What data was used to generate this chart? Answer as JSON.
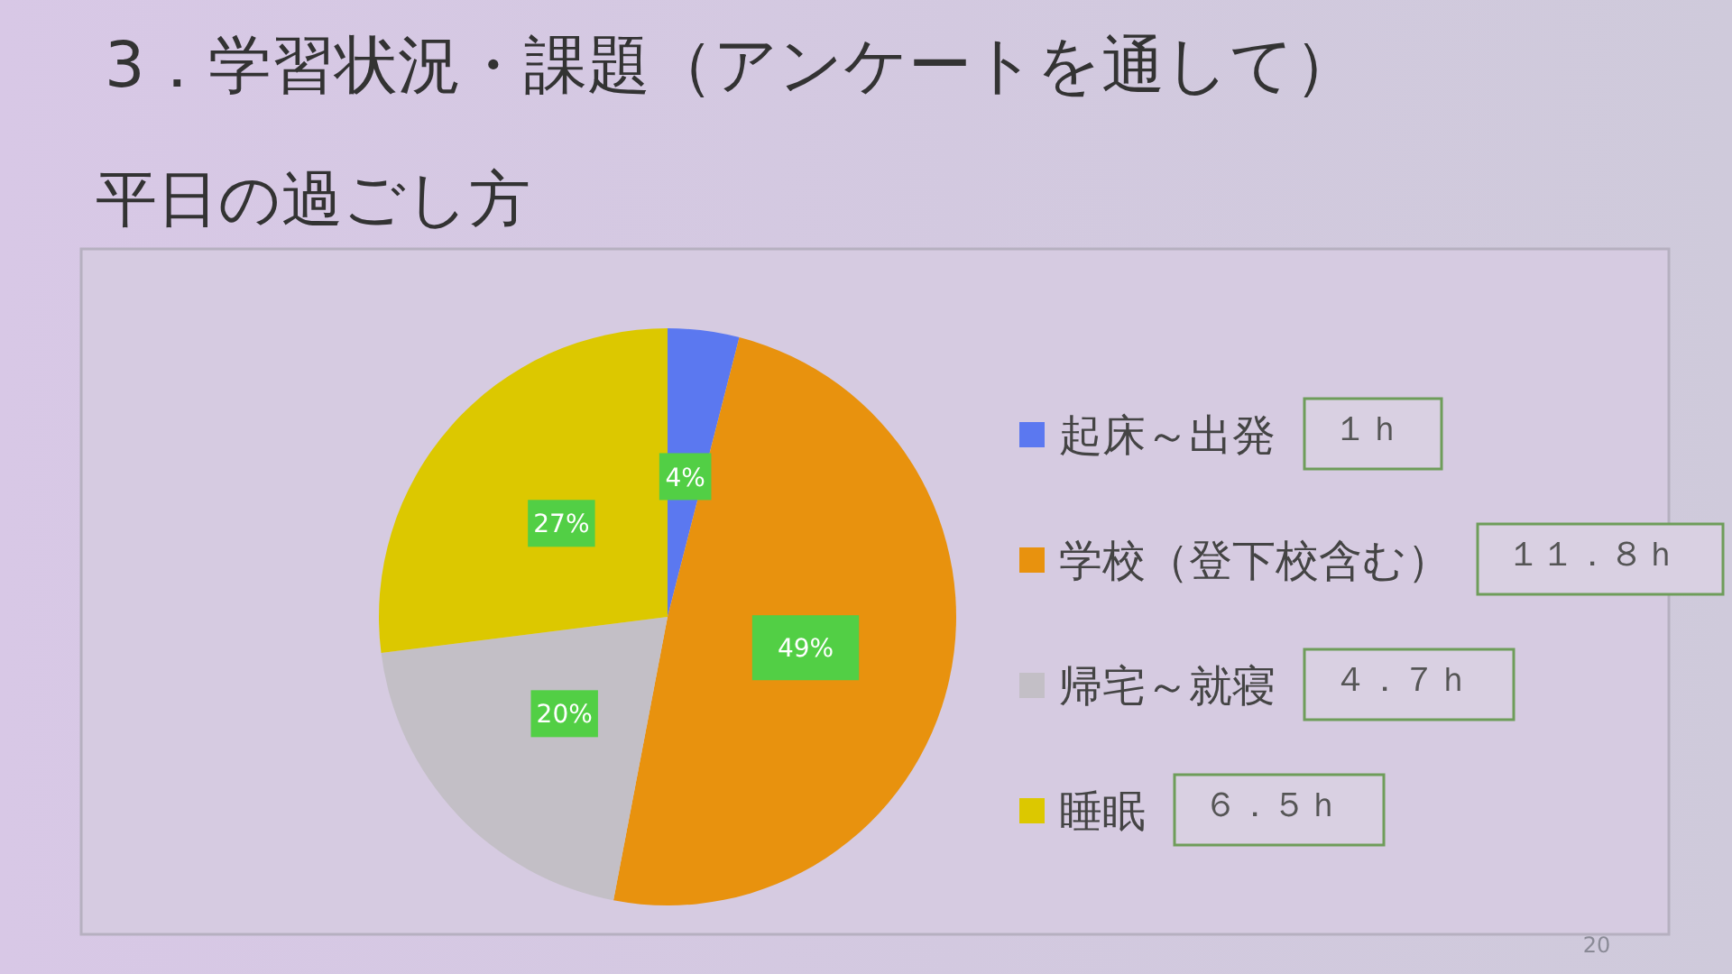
{
  "chart_data": {
    "type": "pie",
    "title": "3．学習状況・課題（アンケートを通して）",
    "subtitle": "平日の過ごし方",
    "categories": [
      "起床～出発",
      "学校（登下校含む）",
      "帰宅～就寝",
      "睡眠"
    ],
    "values": [
      4,
      49,
      20,
      27
    ],
    "colors": [
      "#5b78f0",
      "#e8920e",
      "#c3bfc6",
      "#dcc800"
    ],
    "value_labels": [
      "4%",
      "49%",
      "20%",
      "27%"
    ],
    "legend": "right",
    "annotations": [
      "１ｈ",
      "１１．８ｈ",
      "４．７ｈ",
      "６．５ｈ",
      "20"
    ]
  }
}
